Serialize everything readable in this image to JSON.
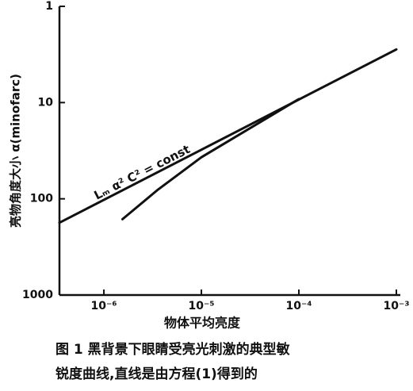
{
  "chart_data": {
    "type": "line",
    "xlabel": "物体平均亮度",
    "ylabel": "亮物角度大小 α(minofarc)",
    "annotation": "Lₘ α² C² = const",
    "caption": [
      "图 1  黑背景下眼睛受亮光刺激的典型敏",
      "锐度曲线,直线是由方程(1)得到的"
    ],
    "xscale": "log",
    "yscale": "log",
    "xlim": [
      3.5e-07,
      0.001
    ],
    "ylim": [
      1000,
      1
    ],
    "xticks": [
      {
        "value": 1e-06,
        "label": "10⁻⁶"
      },
      {
        "value": 1e-05,
        "label": "10⁻⁵"
      },
      {
        "value": 0.0001,
        "label": "10⁻⁴"
      },
      {
        "value": 0.001,
        "label": "10⁻³"
      }
    ],
    "yticks": [
      1,
      10,
      100,
      1000
    ],
    "series": [
      {
        "color": "#111111",
        "x": [
          3.5e-07,
          0.001
        ],
        "values": [
          177,
          2.8
        ]
      },
      {
        "color": "#111111",
        "x": [
          1.55e-06,
          3.6e-06,
          1e-05,
          4e-05,
          0.0001
        ],
        "values": [
          163,
          80,
          37,
          16,
          9.2
        ]
      }
    ]
  }
}
